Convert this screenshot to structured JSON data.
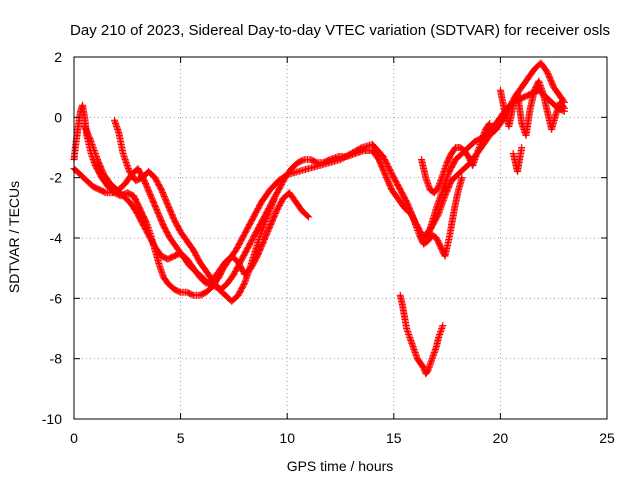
{
  "chart_data": {
    "type": "scatter",
    "title": "Day 210 of 2023, Sidereal Day-to-day VTEC variation (SDTVAR) for receiver osls",
    "xlabel": "GPS time / hours",
    "ylabel": "SDTVAR / TECUs",
    "xlim": [
      0,
      25
    ],
    "ylim": [
      -10,
      2
    ],
    "xticks": [
      0,
      5,
      10,
      15,
      20,
      25
    ],
    "yticks": [
      -10,
      -8,
      -6,
      -4,
      -2,
      0,
      2
    ],
    "grid": true,
    "marker": "plus",
    "colors": {
      "series": "#ff0000"
    },
    "series": [
      {
        "x": [
          0.0,
          0.1,
          0.2,
          0.3,
          0.4,
          0.5,
          0.6,
          0.8,
          1.0,
          1.3,
          1.6,
          1.9,
          2.2,
          2.5,
          2.8,
          3.0,
          3.2,
          3.4,
          3.6,
          3.8,
          4.0,
          4.2,
          4.4,
          4.7,
          5.0,
          5.3,
          5.6,
          5.9,
          6.2,
          6.5,
          6.8,
          7.0,
          7.3,
          7.6,
          7.9,
          8.2,
          8.5,
          8.8,
          9.2,
          9.6,
          10.0,
          10.5,
          11.0,
          11.5,
          12.0,
          12.5,
          13.0,
          13.5,
          14.0,
          14.5,
          15.0,
          15.3,
          15.6,
          15.9,
          16.2,
          16.5,
          16.8,
          17.1,
          17.4,
          17.7,
          18.0,
          18.3,
          18.6,
          18.9,
          19.2,
          19.5,
          19.8,
          20.1,
          20.4,
          20.7,
          21.0,
          21.3,
          21.6,
          21.9,
          22.2,
          22.5,
          22.8,
          23.0
        ],
        "y": [
          -1.4,
          -0.8,
          -0.3,
          0.2,
          0.4,
          0.0,
          -0.6,
          -1.2,
          -1.6,
          -2.0,
          -2.3,
          -2.5,
          -2.6,
          -2.5,
          -2.6,
          -2.9,
          -3.2,
          -3.5,
          -3.9,
          -4.4,
          -4.9,
          -5.3,
          -5.5,
          -5.7,
          -5.8,
          -5.8,
          -5.9,
          -5.9,
          -5.8,
          -5.6,
          -5.3,
          -5.0,
          -4.7,
          -4.4,
          -4.0,
          -3.6,
          -3.2,
          -2.8,
          -2.4,
          -2.1,
          -1.9,
          -1.8,
          -1.7,
          -1.6,
          -1.5,
          -1.4,
          -1.2,
          -1.0,
          -0.9,
          -1.3,
          -2.0,
          -2.4,
          -2.8,
          -3.3,
          -3.9,
          -4.0,
          -3.6,
          -3.2,
          -2.6,
          -2.1,
          -1.9,
          -1.7,
          -1.5,
          -1.2,
          -0.9,
          -0.6,
          -0.4,
          -0.1,
          0.3,
          0.7,
          1.0,
          1.3,
          1.6,
          1.8,
          1.5,
          1.0,
          0.7,
          0.5
        ]
      },
      {
        "x": [
          0.0,
          0.3,
          0.6,
          0.9,
          1.2,
          1.5,
          1.8,
          2.1,
          2.4,
          2.7,
          3.0,
          3.3,
          3.6,
          3.9,
          4.2,
          4.5,
          4.8,
          5.1,
          5.4,
          5.7,
          6.0,
          6.3,
          6.6,
          6.9,
          7.2,
          7.5,
          7.8,
          8.1,
          8.4,
          8.7,
          9.0,
          9.3,
          9.6,
          9.9,
          10.2,
          10.5,
          10.8,
          11.1,
          11.4,
          11.7,
          12.0,
          12.4,
          12.8,
          13.2,
          13.6,
          14.0,
          14.3,
          14.6,
          14.9,
          15.2,
          15.5,
          15.8,
          16.1,
          16.4,
          16.7,
          17.0,
          17.3,
          17.6,
          17.9,
          18.2,
          18.5,
          18.8,
          19.1,
          19.4,
          19.7,
          20.0,
          20.3,
          20.6,
          20.9,
          21.2,
          21.5,
          21.8,
          22.1,
          22.4,
          22.7,
          23.0
        ],
        "y": [
          -1.7,
          -1.9,
          -2.1,
          -2.3,
          -2.4,
          -2.5,
          -2.5,
          -2.4,
          -2.2,
          -1.9,
          -1.7,
          -2.1,
          -2.6,
          -3.1,
          -3.6,
          -4.0,
          -4.3,
          -4.6,
          -4.9,
          -5.1,
          -5.3,
          -5.5,
          -5.6,
          -5.7,
          -5.5,
          -5.2,
          -4.8,
          -4.4,
          -4.0,
          -3.6,
          -3.2,
          -2.8,
          -2.4,
          -2.0,
          -1.7,
          -1.5,
          -1.4,
          -1.4,
          -1.5,
          -1.5,
          -1.4,
          -1.3,
          -1.3,
          -1.2,
          -1.1,
          -1.1,
          -1.4,
          -1.9,
          -2.4,
          -2.7,
          -3.0,
          -3.2,
          -3.6,
          -4.0,
          -3.7,
          -3.0,
          -2.4,
          -1.8,
          -1.4,
          -1.2,
          -1.0,
          -0.8,
          -0.7,
          -0.5,
          -0.3,
          0.0,
          0.3,
          0.5,
          0.6,
          0.7,
          0.8,
          0.9,
          0.7,
          0.5,
          0.3,
          0.2
        ]
      },
      {
        "x": [
          0.5,
          0.8,
          1.1,
          1.4,
          1.7,
          2.0,
          2.3,
          2.6,
          2.9,
          3.2,
          3.5,
          3.8,
          4.1,
          4.4,
          4.7,
          5.0,
          5.3,
          5.6,
          5.9,
          6.2,
          6.5,
          6.8,
          7.1,
          7.4,
          7.7,
          8.0,
          8.3,
          8.6,
          8.9,
          9.2,
          9.5,
          9.8,
          10.1,
          10.4,
          10.7,
          11.0
        ],
        "y": [
          -0.3,
          -0.8,
          -1.4,
          -1.9,
          -2.2,
          -2.4,
          -2.6,
          -2.8,
          -3.1,
          -3.5,
          -3.9,
          -4.3,
          -4.6,
          -4.7,
          -4.6,
          -4.5,
          -4.7,
          -5.0,
          -5.3,
          -5.5,
          -5.4,
          -5.1,
          -4.8,
          -4.6,
          -4.8,
          -5.2,
          -5.0,
          -4.6,
          -4.1,
          -3.6,
          -3.1,
          -2.7,
          -2.5,
          -2.8,
          -3.1,
          -3.3
        ]
      },
      {
        "x": [
          1.9,
          2.1,
          2.3,
          2.6,
          2.9,
          3.2,
          3.5,
          3.8,
          4.1,
          4.4,
          4.7,
          5.0,
          5.3,
          5.6,
          5.9,
          6.2,
          6.5,
          6.8,
          7.1,
          7.4,
          7.7,
          8.0,
          8.3,
          8.6,
          9.0,
          9.4
        ],
        "y": [
          -0.1,
          -0.5,
          -1.2,
          -1.8,
          -2.1,
          -2.0,
          -1.8,
          -2.0,
          -2.4,
          -2.9,
          -3.4,
          -3.8,
          -4.1,
          -4.4,
          -4.8,
          -5.1,
          -5.4,
          -5.7,
          -5.9,
          -6.1,
          -5.9,
          -5.5,
          -4.9,
          -4.2,
          -3.4,
          -2.7
        ]
      },
      {
        "x": [
          15.3,
          15.4,
          15.5,
          15.6,
          15.7,
          15.8,
          15.9,
          16.0,
          16.1,
          16.2,
          16.3,
          16.4,
          16.5,
          16.6,
          16.7,
          16.8,
          16.9,
          17.0,
          17.1,
          17.2,
          17.3
        ],
        "y": [
          -5.9,
          -6.2,
          -6.6,
          -7.0,
          -7.2,
          -7.4,
          -7.6,
          -7.8,
          -8.0,
          -8.1,
          -8.2,
          -8.3,
          -8.5,
          -8.4,
          -8.2,
          -8.0,
          -7.8,
          -7.6,
          -7.3,
          -7.1,
          -6.9
        ]
      },
      {
        "x": [
          16.3,
          16.5,
          16.7,
          16.9,
          17.1,
          17.3,
          17.5,
          17.7,
          17.9,
          18.1,
          18.3,
          18.5,
          18.7,
          18.9,
          19.1,
          19.3,
          19.5
        ],
        "y": [
          -1.4,
          -2.0,
          -2.4,
          -2.5,
          -2.3,
          -1.9,
          -1.5,
          -1.2,
          -1.0,
          -1.0,
          -1.1,
          -1.3,
          -1.6,
          -1.2,
          -0.8,
          -0.4,
          -0.2
        ]
      },
      {
        "x": [
          16.0,
          16.2,
          16.4,
          16.6,
          16.8,
          17.0,
          17.2,
          17.4,
          17.6,
          17.8,
          18.0,
          18.2
        ],
        "y": [
          -3.5,
          -3.9,
          -4.2,
          -4.1,
          -3.9,
          -4.0,
          -4.3,
          -4.6,
          -4.0,
          -3.2,
          -2.5,
          -2.0
        ]
      },
      {
        "x": [
          20.0,
          20.2,
          20.4,
          20.6,
          20.8,
          21.0,
          21.2,
          21.4,
          21.6,
          21.8,
          22.0,
          22.2,
          22.4,
          22.6,
          22.8,
          23.0
        ],
        "y": [
          0.9,
          0.2,
          -0.3,
          0.4,
          0.8,
          -0.2,
          -0.6,
          0.3,
          0.9,
          1.2,
          0.8,
          0.2,
          -0.4,
          0.1,
          0.5,
          0.3
        ]
      },
      {
        "x": [
          20.6,
          20.7,
          20.8,
          20.9,
          21.0
        ],
        "y": [
          -1.2,
          -1.5,
          -1.8,
          -1.4,
          -1.0
        ]
      }
    ]
  }
}
